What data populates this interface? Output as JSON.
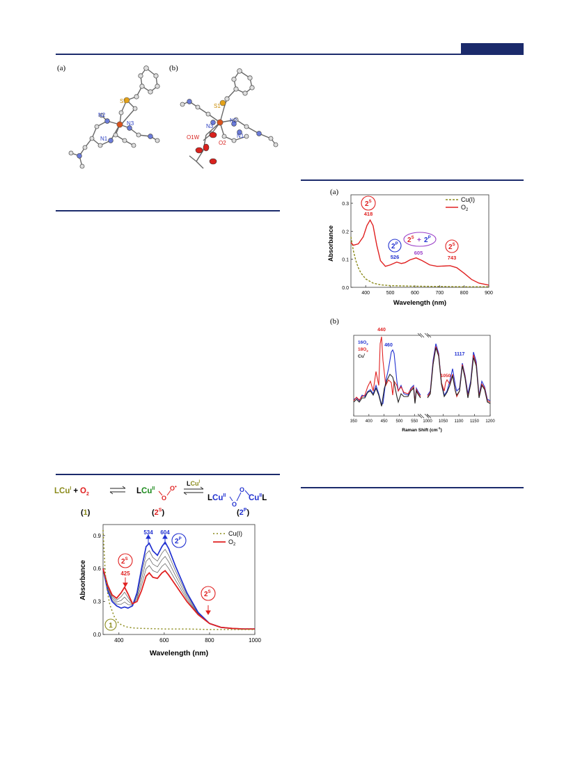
{
  "header": {
    "accent": "#1b2a6b"
  },
  "figure1": {
    "panel_a_label": "(a)",
    "panel_b_label": "(b)",
    "a_atoms": {
      "S1": "S1",
      "N2": "N2",
      "N3": "N3",
      "N1": "N1"
    },
    "b_atoms": {
      "S1": "S1",
      "N3": "N3",
      "N2": "N2",
      "O1W": "O1W",
      "O2": "O2",
      "N1": "N1"
    }
  },
  "figure2": {
    "panel_a_label": "(a)",
    "panel_b_label": "(b)",
    "uv": {
      "legend": [
        "Cu(I)",
        "O"
      ],
      "legend_sub": "2",
      "ylabel": "Absorbance",
      "xlabel": "Wavelength (nm)",
      "xticks": [
        "400",
        "500",
        "600",
        "700",
        "800",
        "900"
      ],
      "yticks": [
        "0.0",
        "0.1",
        "0.2",
        "0.3"
      ],
      "peaks": [
        "418",
        "526",
        "605",
        "743"
      ],
      "badges": {
        "s_main": "2",
        "s_sup": "S",
        "p_main": "2",
        "p_sup": "P",
        "plus": "+"
      }
    },
    "raman": {
      "xlabel": "Raman Shift (cm",
      "xlabel_sup": "-1",
      "xlabel_end": ")",
      "xticks_left": [
        "350",
        "400",
        "450",
        "500",
        "550"
      ],
      "xticks_right": [
        "1000",
        "1050",
        "1100",
        "1150",
        "1200"
      ],
      "legend_top": "16O",
      "legend_mid": "18O",
      "legend_sub": "2",
      "legend_cu": "Cu",
      "legend_cu_sup": "I",
      "labels": [
        "440",
        "460",
        "1050",
        "1117"
      ]
    }
  },
  "scheme": {
    "l1": "L",
    "cu1": "Cu",
    "cu1_sup": "I",
    "plus": "+",
    "o2": "O",
    "o2_sub": "2",
    "l2": "L",
    "cu2": "Cu",
    "cu2_sup": "II",
    "o_a": "O",
    "o_b": "O",
    "radical": "•",
    "over_l": "L",
    "over_cu": "Cu",
    "over_sup": "I",
    "l3": "L",
    "cu3": "Cu",
    "cu3_sup": "II",
    "o_c": "O",
    "o_d": "O",
    "cu4": "Cu",
    "cu4_sup": "II",
    "l4": "L",
    "label1": "1",
    "label2": "2",
    "label2_sup": "S",
    "label3": "2",
    "label3_sup": "P"
  },
  "figure3": {
    "ylabel": "Absorbance",
    "xlabel": "Wavelength (nm)",
    "xticks": [
      "400",
      "600",
      "800",
      "1000"
    ],
    "yticks": [
      "0.0",
      "0.3",
      "0.6",
      "0.9"
    ],
    "legend": [
      "Cu(I)",
      "O"
    ],
    "legend_sub": "2",
    "peaks": [
      "534",
      "604",
      "425"
    ],
    "badge_p_main": "2",
    "badge_p_sup": "P",
    "badge_s_main": "2",
    "badge_s_sup": "S",
    "badge_1": "1"
  },
  "chart_data": [
    {
      "type": "line",
      "xlabel": "Wavelength (nm)",
      "ylabel": "Absorbance",
      "xlim": [
        340,
        900
      ],
      "ylim": [
        0,
        0.33
      ],
      "series": [
        {
          "name": "Cu(I)",
          "x": [
            340,
            350,
            360,
            370,
            380,
            400,
            430,
            460,
            500,
            600,
            700,
            800,
            900
          ],
          "y": [
            0.18,
            0.13,
            0.095,
            0.07,
            0.052,
            0.03,
            0.015,
            0.009,
            0.006,
            0.004,
            0.003,
            0.002,
            0.002
          ]
        },
        {
          "name": "O2",
          "x": [
            340,
            350,
            370,
            390,
            405,
            418,
            430,
            445,
            460,
            480,
            500,
            526,
            545,
            560,
            580,
            605,
            630,
            660,
            690,
            720,
            743,
            770,
            800,
            830,
            860,
            900
          ],
          "y": [
            0.16,
            0.15,
            0.155,
            0.18,
            0.22,
            0.24,
            0.22,
            0.15,
            0.095,
            0.075,
            0.08,
            0.09,
            0.085,
            0.088,
            0.098,
            0.105,
            0.095,
            0.08,
            0.075,
            0.076,
            0.077,
            0.07,
            0.05,
            0.028,
            0.015,
            0.008
          ]
        }
      ]
    },
    {
      "type": "line",
      "xlabel": "Raman Shift (cm-1)",
      "segments": [
        [
          350,
          560
        ],
        [
          1000,
          1200
        ]
      ],
      "series": [
        {
          "name": "16O2"
        },
        {
          "name": "18O2"
        },
        {
          "name": "CuI"
        }
      ],
      "labels": [
        440,
        460,
        1050,
        1117
      ]
    },
    {
      "type": "line",
      "xlabel": "Wavelength (nm)",
      "ylabel": "Absorbance",
      "xlim": [
        330,
        1000
      ],
      "ylim": [
        0,
        1.0
      ],
      "series": [
        {
          "name": "Cu(I)",
          "x": [
            330,
            340,
            350,
            360,
            380,
            400,
            430,
            460,
            500,
            600,
            700,
            800,
            1000
          ],
          "y": [
            0.95,
            0.55,
            0.38,
            0.27,
            0.16,
            0.1,
            0.07,
            0.06,
            0.055,
            0.05,
            0.05,
            0.045,
            0.045
          ]
        },
        {
          "name": "O2 (initial)",
          "x": [
            330,
            350,
            370,
            390,
            410,
            425,
            440,
            460,
            480,
            500,
            520,
            534,
            550,
            570,
            590,
            604,
            620,
            650,
            700,
            750,
            800,
            850,
            900,
            950,
            1000
          ],
          "y": [
            0.6,
            0.45,
            0.36,
            0.33,
            0.38,
            0.43,
            0.37,
            0.28,
            0.3,
            0.4,
            0.53,
            0.56,
            0.52,
            0.51,
            0.56,
            0.58,
            0.54,
            0.45,
            0.3,
            0.18,
            0.1,
            0.065,
            0.055,
            0.05,
            0.05
          ]
        },
        {
          "name": "O2 (final)",
          "x": [
            330,
            350,
            370,
            390,
            410,
            425,
            440,
            460,
            480,
            500,
            520,
            534,
            550,
            570,
            590,
            604,
            620,
            650,
            700,
            750,
            800,
            850,
            900,
            950,
            1000
          ],
          "y": [
            0.6,
            0.4,
            0.3,
            0.26,
            0.24,
            0.25,
            0.24,
            0.26,
            0.38,
            0.6,
            0.8,
            0.83,
            0.76,
            0.72,
            0.8,
            0.84,
            0.78,
            0.62,
            0.38,
            0.2,
            0.1,
            0.065,
            0.055,
            0.05,
            0.05
          ]
        }
      ]
    }
  ]
}
